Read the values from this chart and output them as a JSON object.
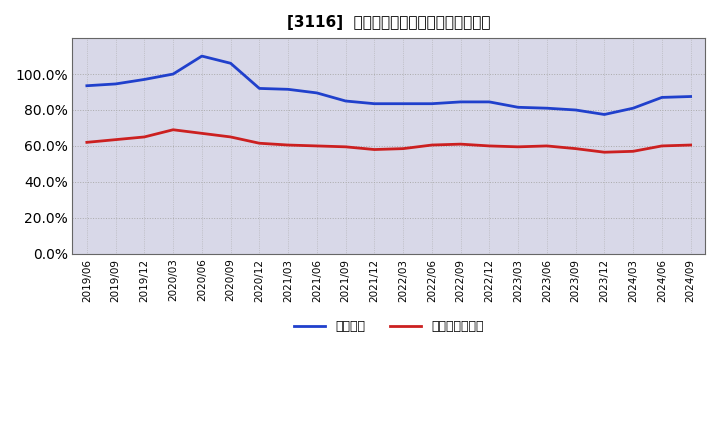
{
  "title": "[3116]  固定比率、固定長期適合率の推移",
  "x_labels": [
    "2019/06",
    "2019/09",
    "2019/12",
    "2020/03",
    "2020/06",
    "2020/09",
    "2020/12",
    "2021/03",
    "2021/06",
    "2021/09",
    "2021/12",
    "2022/03",
    "2022/06",
    "2022/09",
    "2022/12",
    "2023/03",
    "2023/06",
    "2023/09",
    "2023/12",
    "2024/03",
    "2024/06",
    "2024/09"
  ],
  "fixed_ratio": [
    93.5,
    94.5,
    97.0,
    100.0,
    110.0,
    106.0,
    92.0,
    91.5,
    89.5,
    85.0,
    83.5,
    83.5,
    83.5,
    84.5,
    84.5,
    81.5,
    81.0,
    80.0,
    77.5,
    81.0,
    87.0,
    87.5
  ],
  "fixed_long_ratio": [
    62.0,
    63.5,
    65.0,
    69.0,
    67.0,
    65.0,
    61.5,
    60.5,
    60.0,
    59.5,
    58.0,
    58.5,
    60.5,
    61.0,
    60.0,
    59.5,
    60.0,
    58.5,
    56.5,
    57.0,
    60.0,
    60.5
  ],
  "blue_color": "#2040cc",
  "red_color": "#cc2020",
  "fig_bg_color": "#ffffff",
  "plot_bg_color": "#d8d8e8",
  "grid_color": "#aaaaaa",
  "ylim": [
    0,
    120
  ],
  "yticks": [
    0,
    20,
    40,
    60,
    80,
    100
  ],
  "legend_fixed": "固定比率",
  "legend_long": "固定長期適合率",
  "title_fontsize": 11,
  "tick_fontsize": 7.5,
  "legend_fontsize": 9
}
